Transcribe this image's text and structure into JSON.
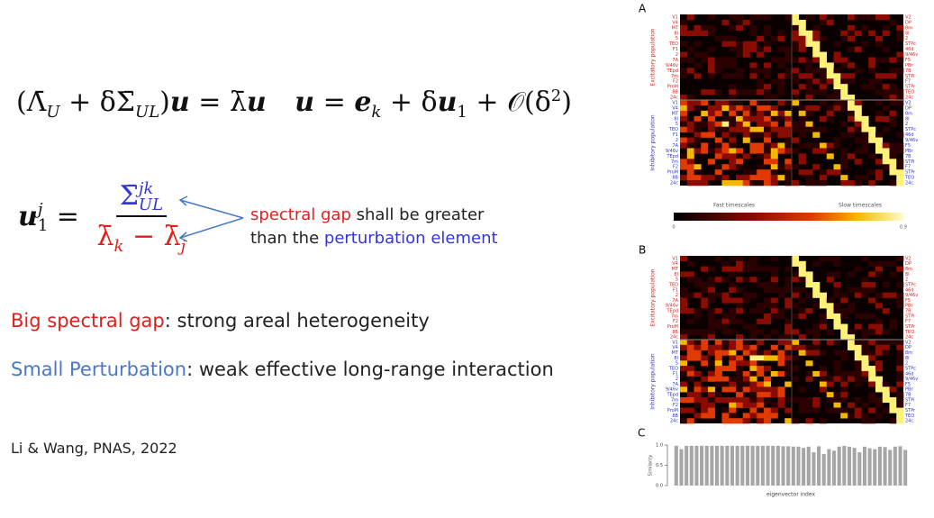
{
  "slide": {
    "equation_1": [
      "(Λ̄",
      "U",
      " + δΣ̄",
      "UL",
      ")",
      "u",
      " = λ̄",
      "u",
      "u",
      " = ",
      "e",
      "k",
      " + δ",
      "u",
      "1",
      " + 𝒪(δ",
      "2",
      ")"
    ],
    "equation_2": {
      "lhs": [
        "u",
        "1",
        "j",
        " = "
      ],
      "numerator": [
        "Σ̄",
        "jk",
        "UL"
      ],
      "denominator": [
        "λ̄",
        "k",
        " − λ̄",
        "j"
      ]
    },
    "note": [
      "spectral gap",
      " shall be greater",
      "than the ",
      "perturbation element"
    ],
    "points": [
      [
        "Big spectral gap",
        ": strong areal heterogeneity"
      ],
      [
        "Small Perturbation",
        ": weak effective long-range interaction"
      ]
    ],
    "citation": "Li & Wang, PNAS, 2022"
  },
  "figure": {
    "panel_labels": [
      "A",
      "B",
      "C"
    ],
    "left_rows": [
      "V1",
      "V4",
      "MT",
      "8l",
      "5",
      "TEO",
      "F1",
      "2",
      "7A",
      "9/46v",
      "TEpd",
      "7m",
      "F2",
      "ProM",
      "8B",
      "24c"
    ],
    "right_rows": [
      "V2",
      "DP",
      "8m",
      "8l",
      "2",
      "STPc",
      "46d",
      "9/46v",
      "F5",
      "PBr",
      "7B",
      "STPi",
      "F7",
      "STPr",
      "TEO",
      "24c"
    ],
    "group_labels": [
      "Excitatory population",
      "Inhibitory population"
    ],
    "timescale_labels": [
      "Fast timescales",
      "Slow timescales"
    ],
    "colorbar_labels": [
      "0",
      "0.9"
    ]
  },
  "chart_data": {
    "type": "bar",
    "ylabel": "Similarity",
    "xlabel": "eigenvector index",
    "color": "#a6a6a6",
    "categories": [
      null,
      null,
      null,
      null,
      null,
      null,
      null,
      null,
      null,
      null,
      null,
      null,
      null,
      null,
      null,
      null,
      null,
      null,
      null,
      null,
      null,
      null,
      null,
      null,
      null,
      null,
      null,
      null,
      null,
      null,
      null,
      null,
      null,
      null,
      null,
      null,
      null,
      null,
      null,
      null,
      null,
      null,
      null,
      null,
      null,
      null
    ],
    "values": [
      0.98,
      0.9,
      0.98,
      0.98,
      0.98,
      0.98,
      0.98,
      0.98,
      0.98,
      0.98,
      0.98,
      0.98,
      0.98,
      0.98,
      0.98,
      0.98,
      0.98,
      0.98,
      0.98,
      0.98,
      0.98,
      0.97,
      0.97,
      0.96,
      0.96,
      0.93,
      0.96,
      0.82,
      0.97,
      0.78,
      0.9,
      0.86,
      0.96,
      0.98,
      0.96,
      0.93,
      0.82,
      0.96,
      0.92,
      0.9,
      0.96,
      0.95,
      0.88,
      0.96,
      0.97,
      0.88
    ],
    "ylim": [
      0,
      1
    ],
    "yticks": [
      {
        "value": 0,
        "label": "0.0"
      },
      {
        "value": 0.5,
        "label": "0.5"
      },
      {
        "value": 1,
        "label": "1.0"
      }
    ]
  }
}
